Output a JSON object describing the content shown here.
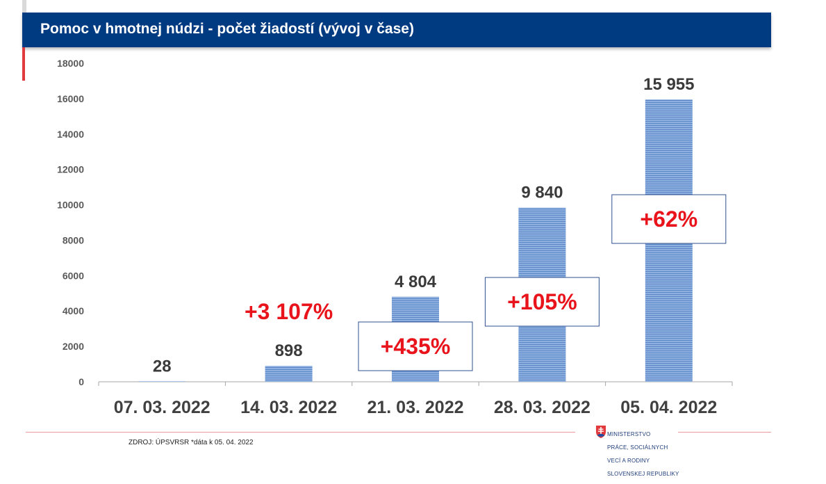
{
  "title": "Pomoc v hmotnej núdzi - počet žiadostí (vývoj v čase)",
  "source": "ZDROJ: ÚPSVRSR *dáta k 05. 04. 2022",
  "logo": {
    "icon": "slovak-coat-of-arms-icon",
    "lines": [
      "MINISTERSTVO",
      "PRÁCE, SOCIÁLNYCH",
      "VECÍ A RODINY",
      "SLOVENSKEJ REPUBLIKY"
    ]
  },
  "colors": {
    "title_bar": "#003a80",
    "bar_fill": "#8db0e0",
    "bar_stripe": "#5c86c4",
    "change_text": "#e8131b",
    "value_text": "#3a3a3a",
    "accent_red": "#e03a3e"
  },
  "chart_data": {
    "type": "bar",
    "categories": [
      "07. 03. 2022",
      "14. 03. 2022",
      "21. 03. 2022",
      "28. 03. 2022",
      "05. 04. 2022"
    ],
    "values": [
      28,
      898,
      4804,
      9840,
      15955
    ],
    "value_labels": [
      "28",
      "898",
      "4 804",
      "9 840",
      "15 955"
    ],
    "change_labels": [
      "",
      "+3 107%",
      "+435%",
      "+105%",
      "+62%"
    ],
    "change_boxed": [
      false,
      false,
      true,
      true,
      true
    ],
    "ylim": [
      0,
      18000
    ],
    "yticks": [
      0,
      2000,
      4000,
      6000,
      8000,
      10000,
      12000,
      14000,
      16000,
      18000
    ],
    "grid": false,
    "legend": "none"
  }
}
